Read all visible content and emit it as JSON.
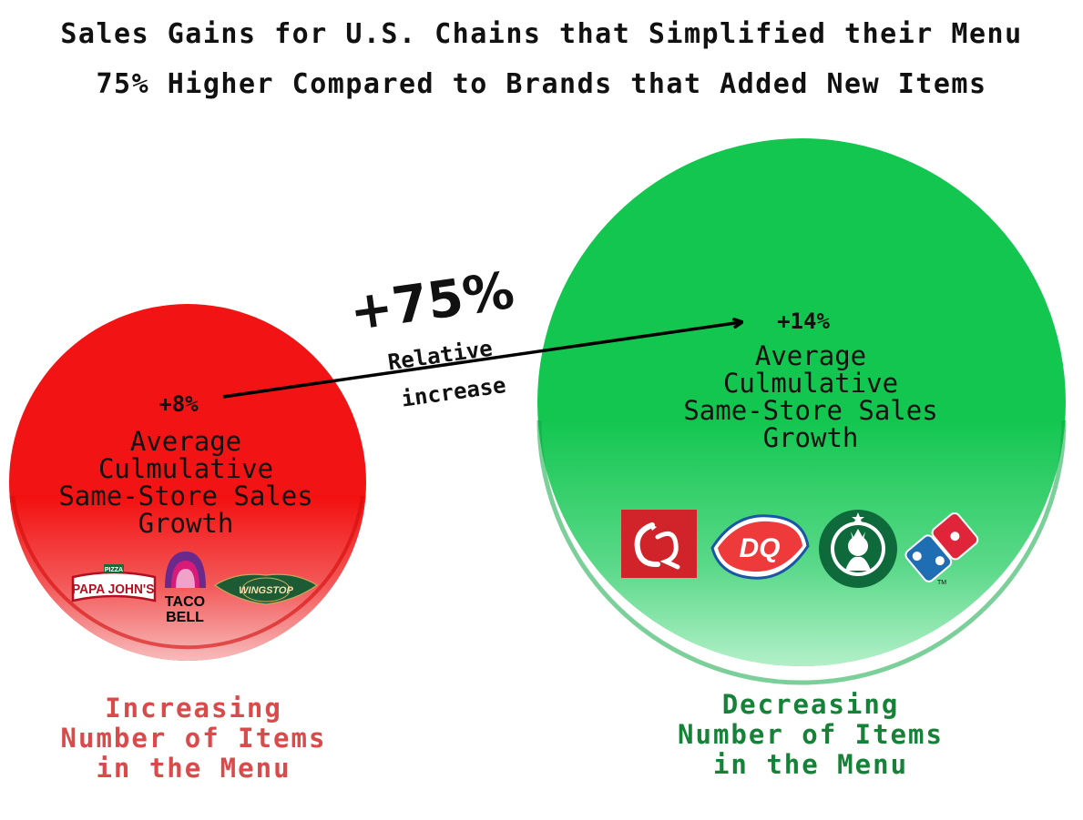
{
  "title": {
    "line1": "Sales Gains for U.S. Chains that Simplified their Menu",
    "line2": "75% Higher Compared to Brands that Added New Items"
  },
  "colors": {
    "red": "#f21414",
    "green": "#12c64f",
    "red_label": "#d94a4a",
    "green_label": "#168238"
  },
  "chart_data": {
    "type": "bubble",
    "title": "Sales Gains for U.S. Chains that Simplified their Menu 75% Higher Compared to Brands that Added New Items",
    "unit": "%",
    "series": [
      {
        "name": "Increasing Number of Items in the Menu",
        "value": 8,
        "value_label": "+8%",
        "metric": [
          "Average",
          "Culmulative",
          "Same-Store Sales",
          "Growth"
        ],
        "color": "#f21414",
        "brands": [
          "PAPA JOHN'S",
          "TACO BELL",
          "WINGSTOP"
        ]
      },
      {
        "name": "Decreasing Number of Items in the Menu",
        "value": 14,
        "value_label": "+14%",
        "metric": [
          "Average",
          "Culmulative",
          "Same-Store Sales",
          "Growth"
        ],
        "color": "#12c64f",
        "brands": [
          "Chick-fil-A",
          "DQ",
          "Starbucks",
          "Domino's"
        ]
      }
    ],
    "annotation": {
      "value": 75,
      "label": "+75%",
      "text": [
        "Relative",
        "increase"
      ]
    }
  },
  "categories": {
    "left": [
      "Increasing",
      "Number of Items",
      "in the Menu"
    ],
    "right": [
      "Decreasing",
      "Number of Items",
      "in the Menu"
    ]
  },
  "logos": {
    "papa_johns": {
      "top": "PIZZA",
      "main": "PAPA JOHN'S"
    },
    "taco_bell": {
      "line1": "TACO",
      "line2": "BELL"
    },
    "wingstop": {
      "main": "WINGSTOP"
    },
    "dq": {
      "main": "DQ"
    },
    "dominos": {
      "tm": "TM"
    }
  }
}
